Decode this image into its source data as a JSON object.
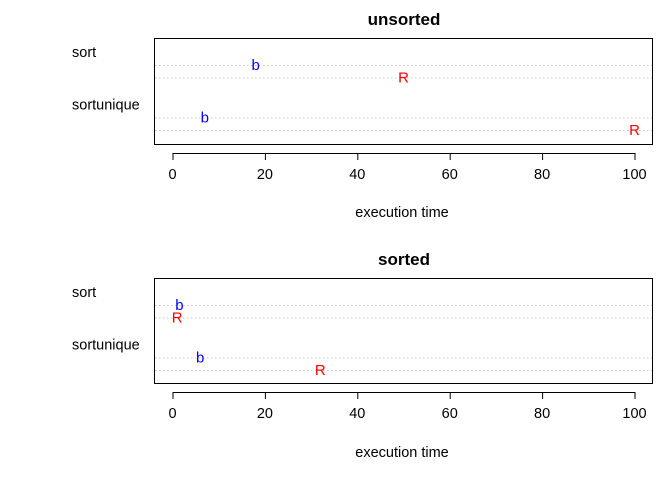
{
  "chart_data": [
    {
      "type": "dotchart",
      "title": "unsorted",
      "xlabel": "execution time",
      "xlim": [
        0,
        100
      ],
      "xticks": [
        0,
        20,
        40,
        60,
        80,
        100
      ],
      "groups": [
        "sort",
        "sortunique"
      ],
      "series": [
        {
          "name": "b",
          "color": "#0000ff",
          "values": {
            "sort": 18,
            "sortunique": 7
          }
        },
        {
          "name": "R",
          "color": "#ff0000",
          "values": {
            "sort": 50,
            "sortunique": 100
          }
        }
      ]
    },
    {
      "type": "dotchart",
      "title": "sorted",
      "xlabel": "execution time",
      "xlim": [
        0,
        100
      ],
      "xticks": [
        0,
        20,
        40,
        60,
        80,
        100
      ],
      "groups": [
        "sort",
        "sortunique"
      ],
      "series": [
        {
          "name": "b",
          "color": "#0000ff",
          "values": {
            "sort": 1.5,
            "sortunique": 6
          }
        },
        {
          "name": "R",
          "color": "#ff0000",
          "values": {
            "sort": 1,
            "sortunique": 32
          }
        }
      ]
    }
  ]
}
